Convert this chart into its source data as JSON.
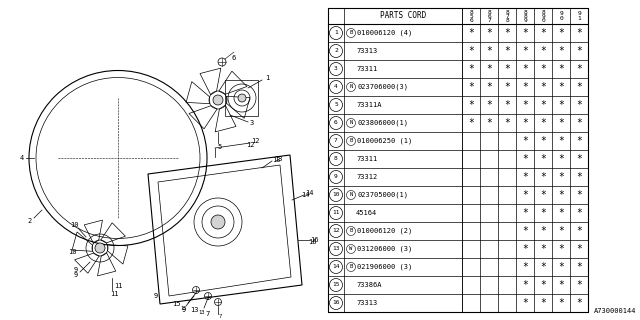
{
  "bg_color": "#ffffff",
  "line_color": "#000000",
  "diagram_note": "A730000144",
  "table": {
    "rows": [
      {
        "num": "1",
        "prefix": "B",
        "part": "010006120 (4)",
        "stars": [
          1,
          1,
          1,
          1,
          1,
          1,
          1
        ]
      },
      {
        "num": "2",
        "prefix": "",
        "part": "73313",
        "stars": [
          1,
          1,
          1,
          1,
          1,
          1,
          1
        ]
      },
      {
        "num": "3",
        "prefix": "",
        "part": "73311",
        "stars": [
          1,
          1,
          1,
          1,
          1,
          1,
          1
        ]
      },
      {
        "num": "4",
        "prefix": "N",
        "part": "023706000(3)",
        "stars": [
          1,
          1,
          1,
          1,
          1,
          1,
          1
        ]
      },
      {
        "num": "5",
        "prefix": "",
        "part": "73311A",
        "stars": [
          1,
          1,
          1,
          1,
          1,
          1,
          1
        ]
      },
      {
        "num": "6",
        "prefix": "N",
        "part": "023806000(1)",
        "stars": [
          1,
          1,
          1,
          1,
          1,
          1,
          1
        ]
      },
      {
        "num": "7",
        "prefix": "B",
        "part": "010006250 (1)",
        "stars": [
          0,
          0,
          0,
          1,
          1,
          1,
          1
        ]
      },
      {
        "num": "8",
        "prefix": "",
        "part": "73311",
        "stars": [
          0,
          0,
          0,
          1,
          1,
          1,
          1
        ]
      },
      {
        "num": "9",
        "prefix": "",
        "part": "73312",
        "stars": [
          0,
          0,
          0,
          1,
          1,
          1,
          1
        ]
      },
      {
        "num": "10",
        "prefix": "N",
        "part": "023705000(1)",
        "stars": [
          0,
          0,
          0,
          1,
          1,
          1,
          1
        ]
      },
      {
        "num": "11",
        "prefix": "",
        "part": "45164",
        "stars": [
          0,
          0,
          0,
          1,
          1,
          1,
          1
        ]
      },
      {
        "num": "12",
        "prefix": "B",
        "part": "010006120 (2)",
        "stars": [
          0,
          0,
          0,
          1,
          1,
          1,
          1
        ]
      },
      {
        "num": "13",
        "prefix": "W",
        "part": "031206000 (3)",
        "stars": [
          0,
          0,
          0,
          1,
          1,
          1,
          1
        ]
      },
      {
        "num": "14",
        "prefix": "B",
        "part": "021906000 (3)",
        "stars": [
          0,
          0,
          0,
          1,
          1,
          1,
          1
        ]
      },
      {
        "num": "15",
        "prefix": "",
        "part": "73386A",
        "stars": [
          0,
          0,
          0,
          1,
          1,
          1,
          1
        ]
      },
      {
        "num": "16",
        "prefix": "",
        "part": "73313",
        "stars": [
          0,
          0,
          0,
          1,
          1,
          1,
          1
        ]
      }
    ],
    "year_col_labels": [
      [
        "8",
        "5",
        "6"
      ],
      [
        "8",
        "6",
        "7"
      ],
      [
        "8",
        "7",
        "8"
      ],
      [
        "8",
        "8",
        "9"
      ],
      [
        "8",
        "9",
        "0"
      ],
      [
        "9",
        "0"
      ],
      [
        "9",
        "1"
      ]
    ]
  }
}
